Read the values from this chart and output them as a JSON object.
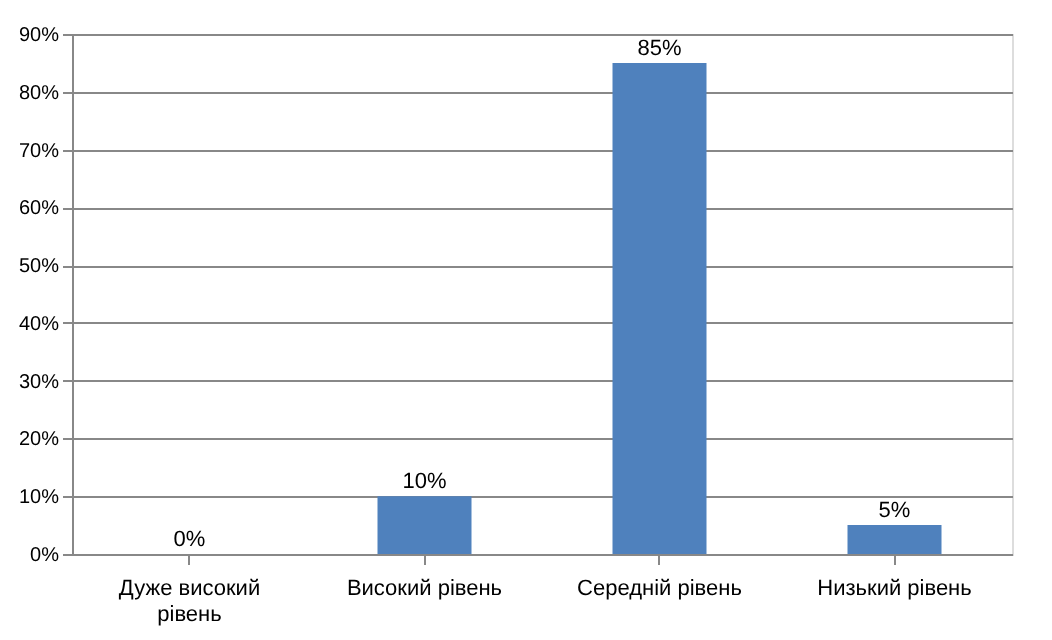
{
  "chart_data": {
    "type": "bar",
    "categories": [
      "Дуже високий рівень",
      "Високий рівень",
      "Середній рівень",
      "Низький рівень"
    ],
    "values": [
      0,
      10,
      85,
      5
    ],
    "value_labels": [
      "0%",
      "10%",
      "85%",
      "5%"
    ],
    "color": "#4f81bd",
    "ylim": [
      0,
      90
    ],
    "yticks": [
      {
        "value": 0,
        "label": "0%"
      },
      {
        "value": 10,
        "label": "10%"
      },
      {
        "value": 20,
        "label": "20%"
      },
      {
        "value": 30,
        "label": "30%"
      },
      {
        "value": 40,
        "label": "40%"
      },
      {
        "value": 50,
        "label": "50%"
      },
      {
        "value": 60,
        "label": "60%"
      },
      {
        "value": 70,
        "label": "70%"
      },
      {
        "value": 80,
        "label": "80%"
      },
      {
        "value": 90,
        "label": "90%"
      }
    ],
    "grid": "y"
  }
}
